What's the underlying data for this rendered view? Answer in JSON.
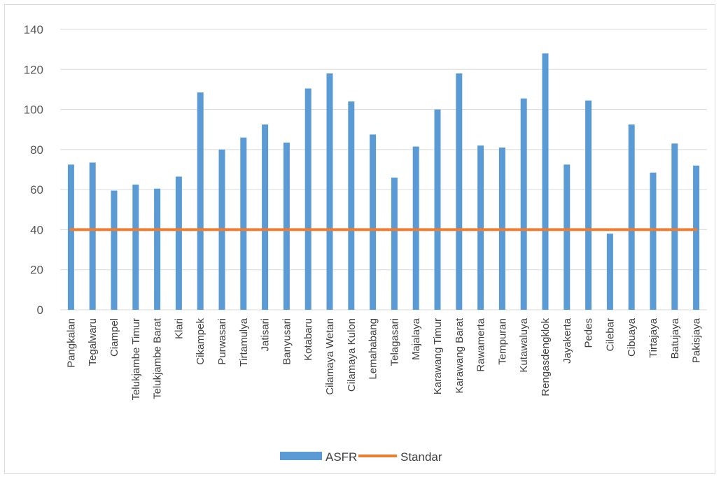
{
  "chart_data": {
    "type": "bar",
    "title": "",
    "xlabel": "",
    "ylabel": "",
    "ylim": [
      0,
      140
    ],
    "yticks": [
      0,
      20,
      40,
      60,
      80,
      100,
      120,
      140
    ],
    "grid": true,
    "legend_position": "bottom",
    "categories": [
      "Pangkalan",
      "Tegalwaru",
      "Ciampel",
      "Telukjambe Timur",
      "Telukjambe Barat",
      "Klari",
      "Cikampek",
      "Purwasari",
      "Tirtamulya",
      "Jatisari",
      "Banyusari",
      "Kotabaru",
      "Cilamaya Wetan",
      "Cilamaya Kulon",
      "Lemahabang",
      "Telagasari",
      "Majalaya",
      "Karawang Timur",
      "Karawang Barat",
      "Rawamerta",
      "Tempuran",
      "Kutawaluya",
      "Rengasdengklok",
      "Jayakerta",
      "Pedes",
      "Cilebar",
      "Cibuaya",
      "Tirtajaya",
      "Batujaya",
      "Pakisjaya"
    ],
    "series": [
      {
        "name": "ASFR",
        "kind": "bar",
        "color": "#5b9bd5",
        "values": [
          72.5,
          73.5,
          59.5,
          62.5,
          60.5,
          66.5,
          108.5,
          80,
          86,
          92.5,
          83.5,
          110.5,
          118,
          104,
          87.5,
          66,
          81.5,
          100,
          118,
          82,
          81,
          105.5,
          128,
          72.5,
          104.5,
          38,
          92.5,
          68.5,
          83,
          72
        ]
      },
      {
        "name": "Standar",
        "kind": "line",
        "color": "#ed7d31",
        "values": [
          40,
          40,
          40,
          40,
          40,
          40,
          40,
          40,
          40,
          40,
          40,
          40,
          40,
          40,
          40,
          40,
          40,
          40,
          40,
          40,
          40,
          40,
          40,
          40,
          40,
          40,
          40,
          40,
          40,
          40
        ]
      }
    ]
  }
}
